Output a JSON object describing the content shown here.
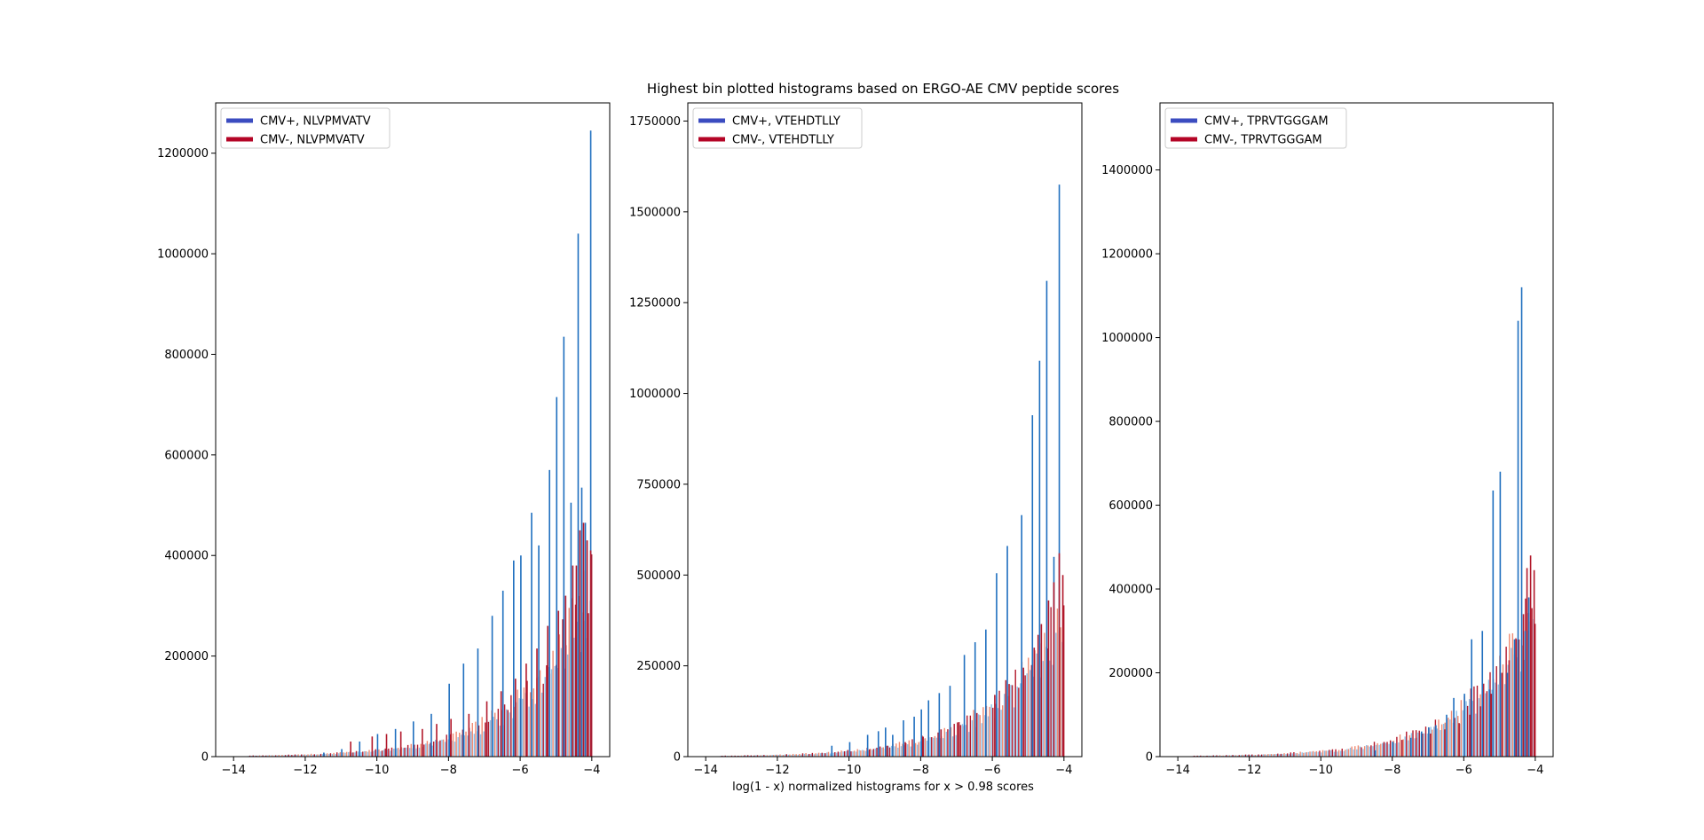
{
  "figure": {
    "title": "Highest bin plotted histograms based on ERGO-AE CMV peptide scores",
    "xlabel": "log(1 - x) normalized histograms for x > 0.98 scores"
  },
  "colors": {
    "pos_bar": "#1f6fbf",
    "pos_bar_light": "#8ec0e8",
    "neg_bar": "#b2182b",
    "neg_bar_light": "#f08a72",
    "legend_pos": "#3b4cc0",
    "legend_neg": "#b40426"
  },
  "chart_data": [
    {
      "type": "bar",
      "xlim": [
        -14.5,
        -3.5
      ],
      "ylim": [
        0,
        1300000
      ],
      "xticks": [
        -14,
        -12,
        -10,
        -8,
        -6,
        -4
      ],
      "yticks": [
        0,
        200000,
        400000,
        600000,
        800000,
        1000000,
        1200000
      ],
      "legend_position": "upper-left",
      "series": [
        {
          "name": "CMV+, NLVPMVATV",
          "color": "#1f6fbf",
          "x": [
            -11.5,
            -11.0,
            -10.5,
            -10.0,
            -9.5,
            -9.0,
            -8.5,
            -8.0,
            -7.6,
            -7.2,
            -6.8,
            -6.5,
            -6.2,
            -6.0,
            -5.7,
            -5.5,
            -5.2,
            -5.0,
            -4.8,
            -4.6,
            -4.4,
            -4.3,
            -4.2,
            -4.05
          ],
          "values": [
            8000,
            15000,
            30000,
            45000,
            55000,
            70000,
            85000,
            145000,
            185000,
            215000,
            280000,
            330000,
            390000,
            400000,
            485000,
            420000,
            570000,
            715000,
            835000,
            505000,
            1040000,
            535000,
            465000,
            1245000
          ]
        },
        {
          "name": "CMV-, NLVPMVATV",
          "color": "#b2182b",
          "x": [
            -10.8,
            -10.2,
            -9.8,
            -9.4,
            -8.8,
            -8.4,
            -8.0,
            -7.5,
            -7.0,
            -6.6,
            -6.2,
            -5.9,
            -5.6,
            -5.3,
            -5.0,
            -4.8,
            -4.6,
            -4.5,
            -4.4,
            -4.3,
            -4.2,
            -4.1
          ],
          "values": [
            30000,
            40000,
            45000,
            50000,
            55000,
            65000,
            75000,
            85000,
            110000,
            130000,
            155000,
            185000,
            215000,
            260000,
            290000,
            320000,
            380000,
            380000,
            450000,
            465000,
            430000,
            410000
          ]
        }
      ]
    },
    {
      "type": "bar",
      "xlim": [
        -14.5,
        -3.5
      ],
      "ylim": [
        0,
        1800000
      ],
      "xticks": [
        -14,
        -12,
        -10,
        -8,
        -6,
        -4
      ],
      "yticks": [
        0,
        250000,
        500000,
        750000,
        1000000,
        1250000,
        1500000,
        1750000
      ],
      "legend_position": "upper-left",
      "series": [
        {
          "name": "CMV+, VTEHDTLLY",
          "color": "#1f6fbf",
          "x": [
            -10.5,
            -10.0,
            -9.5,
            -9.2,
            -9.0,
            -8.8,
            -8.5,
            -8.2,
            -8.0,
            -7.8,
            -7.5,
            -7.2,
            -6.8,
            -6.5,
            -6.2,
            -5.9,
            -5.6,
            -5.2,
            -4.9,
            -4.7,
            -4.5,
            -4.3,
            -4.15
          ],
          "values": [
            30000,
            40000,
            60000,
            70000,
            80000,
            60000,
            100000,
            110000,
            130000,
            155000,
            175000,
            195000,
            280000,
            315000,
            350000,
            505000,
            580000,
            665000,
            940000,
            1090000,
            1310000,
            550000,
            1575000
          ]
        },
        {
          "name": "CMV-, VTEHDTLLY",
          "color": "#b2182b",
          "x": [
            -9.5,
            -9.0,
            -8.5,
            -8.0,
            -7.5,
            -7.0,
            -6.5,
            -6.0,
            -5.6,
            -5.2,
            -4.9,
            -4.7,
            -4.5,
            -4.35,
            -4.2,
            -4.1
          ],
          "values": [
            20000,
            30000,
            40000,
            55000,
            75000,
            95000,
            120000,
            170000,
            200000,
            245000,
            300000,
            365000,
            430000,
            480000,
            560000,
            500000
          ]
        }
      ]
    },
    {
      "type": "bar",
      "xlim": [
        -14.5,
        -3.5
      ],
      "ylim": [
        0,
        1560000
      ],
      "xticks": [
        -14,
        -12,
        -10,
        -8,
        -6,
        -4
      ],
      "yticks": [
        0,
        200000,
        400000,
        600000,
        800000,
        1000000,
        1200000,
        1400000
      ],
      "legend_position": "upper-left",
      "series": [
        {
          "name": "CMV+, TPRVTGGGAM",
          "color": "#1f6fbf",
          "x": [
            -8.5,
            -8.0,
            -7.5,
            -7.2,
            -7.0,
            -6.8,
            -6.5,
            -6.3,
            -6.0,
            -5.8,
            -5.5,
            -5.3,
            -5.2,
            -5.0,
            -4.8,
            -4.6,
            -4.5,
            -4.4,
            -4.3,
            -4.2
          ],
          "values": [
            15000,
            35000,
            45000,
            60000,
            70000,
            75000,
            100000,
            140000,
            150000,
            280000,
            300000,
            160000,
            635000,
            680000,
            200000,
            280000,
            1040000,
            1120000,
            300000,
            380000
          ]
        },
        {
          "name": "CMV-, TPRVTGGGAM",
          "color": "#b2182b",
          "x": [
            -8.3,
            -7.8,
            -7.4,
            -7.0,
            -6.6,
            -6.2,
            -5.9,
            -5.6,
            -5.3,
            -5.0,
            -4.8,
            -4.6,
            -4.4,
            -4.3,
            -4.2,
            -4.1
          ],
          "values": [
            35000,
            40000,
            45000,
            55000,
            65000,
            80000,
            100000,
            120000,
            150000,
            200000,
            230000,
            280000,
            340000,
            450000,
            480000,
            445000
          ]
        }
      ]
    }
  ]
}
